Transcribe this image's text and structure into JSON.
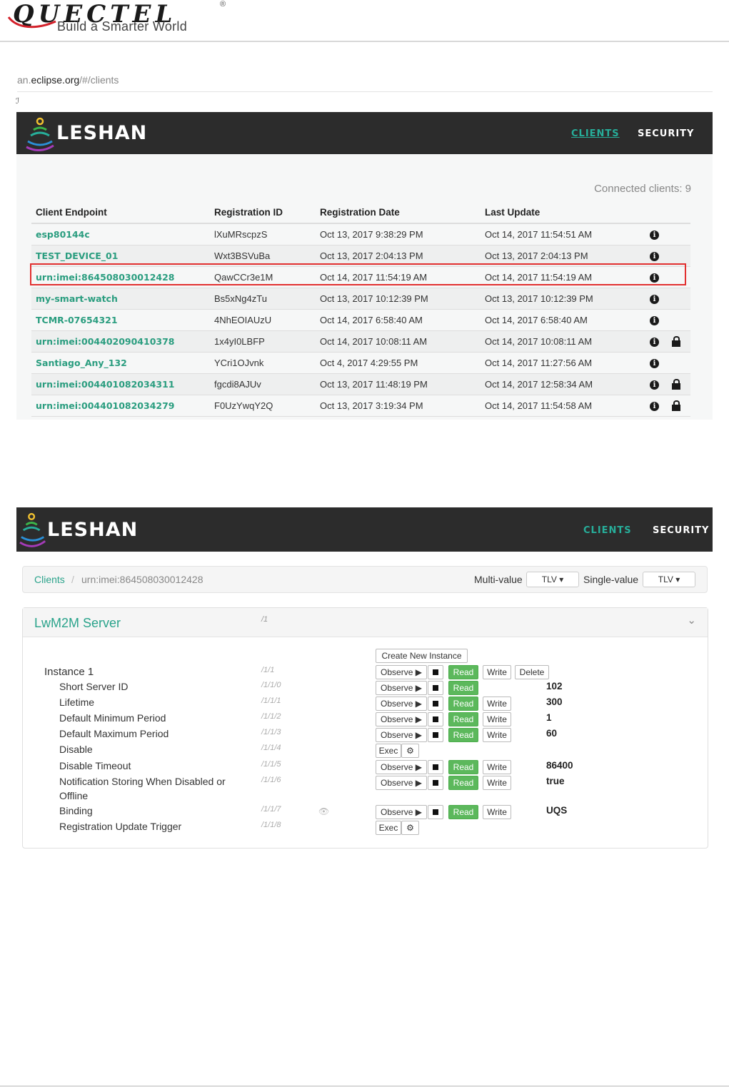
{
  "doc_header": {
    "brand": "QUECTEL",
    "registered": "®",
    "tagline": "Build a Smarter World"
  },
  "browser": {
    "url_prefix": "an.",
    "url_domain": "eclipse.org",
    "url_path": "/#/clients",
    "glyph": "ℐ"
  },
  "leshan": {
    "brand": "LESHAN",
    "nav_clients": "CLIENTS",
    "nav_security": "SECURITY"
  },
  "clients_page": {
    "connected": "Connected clients: 9",
    "columns": [
      "Client Endpoint",
      "Registration ID",
      "Registration Date",
      "Last Update"
    ],
    "rows": [
      {
        "endpoint": "esp80144c",
        "reg_id": "lXuMRscpzS",
        "reg_date": "Oct 13, 2017 9:38:29 PM",
        "last_update": "Oct 14, 2017 11:54:51 AM",
        "secure": false
      },
      {
        "endpoint": "TEST_DEVICE_01",
        "reg_id": "Wxt3BSVuBa",
        "reg_date": "Oct 13, 2017 2:04:13 PM",
        "last_update": "Oct 13, 2017 2:04:13 PM",
        "secure": false
      },
      {
        "endpoint": "urn:imei:864508030012428",
        "reg_id": "QawCCr3e1M",
        "reg_date": "Oct 14, 2017 11:54:19 AM",
        "last_update": "Oct 14, 2017 11:54:19 AM",
        "secure": false
      },
      {
        "endpoint": "my-smart-watch",
        "reg_id": "Bs5xNg4zTu",
        "reg_date": "Oct 13, 2017 10:12:39 PM",
        "last_update": "Oct 13, 2017 10:12:39 PM",
        "secure": false
      },
      {
        "endpoint": "TCMR-07654321",
        "reg_id": "4NhEOIAUzU",
        "reg_date": "Oct 14, 2017 6:58:40 AM",
        "last_update": "Oct 14, 2017 6:58:40 AM",
        "secure": false
      },
      {
        "endpoint": "urn:imei:004402090410378",
        "reg_id": "1x4yI0LBFP",
        "reg_date": "Oct 14, 2017 10:08:11 AM",
        "last_update": "Oct 14, 2017 10:08:11 AM",
        "secure": true
      },
      {
        "endpoint": "Santiago_Any_132",
        "reg_id": "YCri1OJvnk",
        "reg_date": "Oct 4, 2017 4:29:55 PM",
        "last_update": "Oct 14, 2017 11:27:56 AM",
        "secure": false
      },
      {
        "endpoint": "urn:imei:004401082034311",
        "reg_id": "fgcdi8AJUv",
        "reg_date": "Oct 13, 2017 11:48:19 PM",
        "last_update": "Oct 14, 2017 12:58:34 AM",
        "secure": true
      },
      {
        "endpoint": "urn:imei:004401082034279",
        "reg_id": "F0UzYwqY2Q",
        "reg_date": "Oct 13, 2017 3:19:34 PM",
        "last_update": "Oct 14, 2017 11:54:58 AM",
        "secure": true
      }
    ]
  },
  "client_page": {
    "breadcrumb_root": "Clients",
    "breadcrumb_sep": "/",
    "breadcrumb_current": "urn:imei:864508030012428",
    "multi_value_label": "Multi-value",
    "multi_value": "TLV",
    "single_value_label": "Single-value",
    "single_value": "TLV",
    "object_title": "LwM2M Server",
    "object_path": "/1",
    "create_instance": "Create New Instance",
    "instance_label": "Instance 1",
    "instance_path": "/1/1",
    "btn_observe": "Observe",
    "btn_read": "Read",
    "btn_write": "Write",
    "btn_delete": "Delete",
    "btn_exec": "Exec",
    "resources": [
      {
        "name": "Short Server ID",
        "path": "/1/1/0",
        "kind": "r",
        "value": "102"
      },
      {
        "name": "Lifetime",
        "path": "/1/1/1",
        "kind": "rw",
        "value": "300"
      },
      {
        "name": "Default Minimum Period",
        "path": "/1/1/2",
        "kind": "rw",
        "value": "1"
      },
      {
        "name": "Default Maximum Period",
        "path": "/1/1/3",
        "kind": "rw",
        "value": "60"
      },
      {
        "name": "Disable",
        "path": "/1/1/4",
        "kind": "e",
        "value": ""
      },
      {
        "name": "Disable Timeout",
        "path": "/1/1/5",
        "kind": "rw",
        "value": "86400"
      },
      {
        "name": "Notification Storing When Disabled or",
        "name2": "Offline",
        "path": "/1/1/6",
        "kind": "rw",
        "value": "true"
      },
      {
        "name": "Binding",
        "path": "/1/1/7",
        "kind": "rw",
        "value": "UQS"
      },
      {
        "name": "Registration Update Trigger",
        "path": "/1/1/8",
        "kind": "e",
        "value": ""
      }
    ]
  }
}
